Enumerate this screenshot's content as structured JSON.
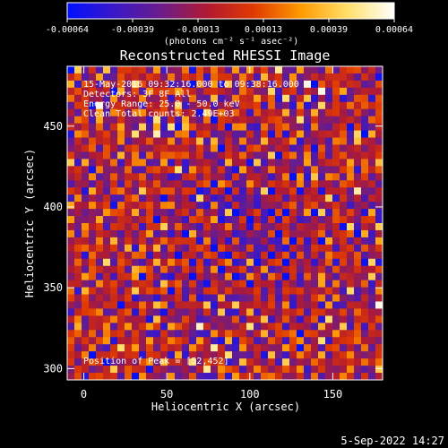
{
  "colorbar": {
    "min": -0.00064,
    "max": 0.00064,
    "ticks": [
      "-0.00064",
      "-0.00039",
      "-0.00013",
      "0.00013",
      "0.00039",
      "0.00064"
    ],
    "unit_label": "(photons cm⁻² s⁻¹ asec⁻²)",
    "colors": [
      "#0010ff",
      "#3a18c8",
      "#6a1c8c",
      "#b11a32",
      "#e03a00",
      "#ff9a00",
      "#ffe06a",
      "#ffffff"
    ]
  },
  "chart_data": {
    "type": "heatmap",
    "title": "Reconstructed RHESSI Image",
    "xlabel": "Heliocentric X (arcsec)",
    "ylabel": "Heliocentric Y (arcsec)",
    "xlim": [
      -10,
      180
    ],
    "ylim": [
      293,
      487
    ],
    "xticks": [
      0,
      50,
      100,
      150
    ],
    "yticks": [
      300,
      350,
      400,
      450
    ],
    "peak": [
      52,
      452
    ],
    "total_counts": 2490
  },
  "info": {
    "line1": "15-May-2016 09:32:16.000 to 09:38:16.000",
    "line2": "Detectors: 3F 8F  All",
    "line3": "Energy Range: 25.0 - 50.0 keV",
    "line4": "Clean     Total counts: 2.49E+03",
    "peak_label": "Position of Peak = [52,452]"
  },
  "footer": {
    "timestamp": "5-Sep-2022 14:27"
  }
}
